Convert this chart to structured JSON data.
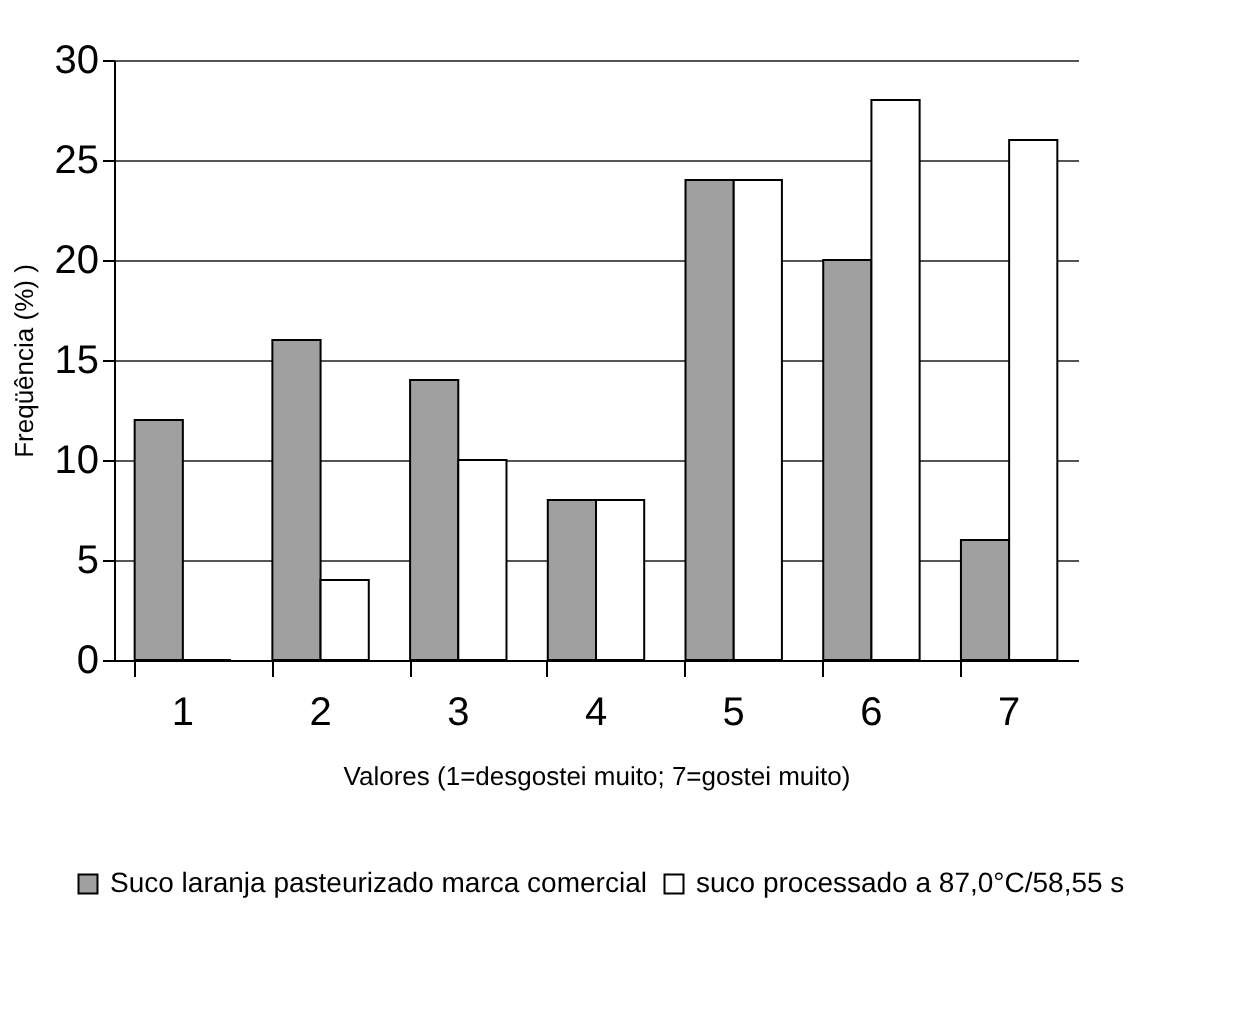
{
  "chart_data": {
    "type": "bar",
    "xlabel": "Valores (1=desgostei muito; 7=gostei muito)",
    "ylabel": "Freqüência (%) )",
    "categories": [
      "1",
      "2",
      "3",
      "4",
      "5",
      "6",
      "7"
    ],
    "series": [
      {
        "name": "Suco laranja pasteurizado marca comercial",
        "color": "#a0a0a0",
        "values": [
          12,
          16,
          14,
          8,
          24,
          20,
          6
        ]
      },
      {
        "name": "suco processado a 87,0°C/58,55 s",
        "color": "#ffffff",
        "values": [
          0,
          4,
          10,
          8,
          24,
          28,
          26
        ]
      }
    ],
    "ylim": [
      0,
      30
    ],
    "yticks": [
      0,
      5,
      10,
      15,
      20,
      25,
      30
    ],
    "grid": "y",
    "legend": "bottom"
  }
}
